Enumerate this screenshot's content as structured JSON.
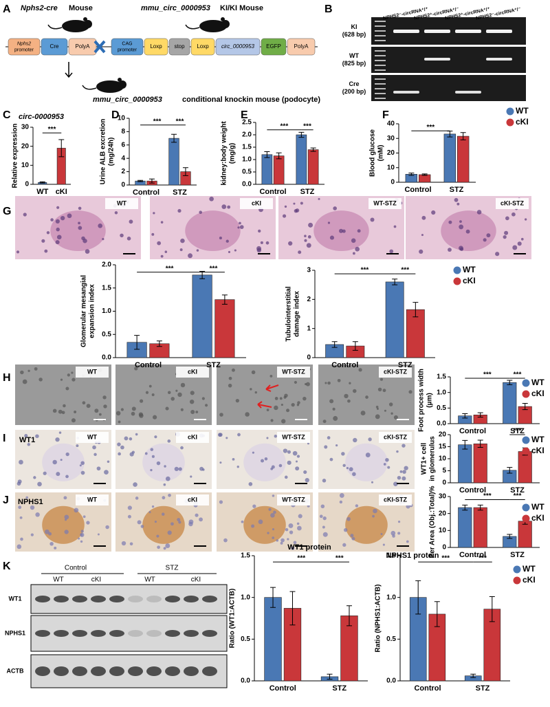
{
  "panel_labels": [
    "A",
    "B",
    "C",
    "D",
    "E",
    "F",
    "G",
    "H",
    "I",
    "J",
    "K"
  ],
  "panel_a": {
    "cre_mouse": "Nphs2-cre",
    "cre_mouse_suffix": "Mouse",
    "ki_mouse": "mmu_circ_0000953",
    "ki_mouse_suffix": "KI/KI Mouse",
    "cre_construct": [
      [
        "Nphs2",
        "promoter"
      ],
      [
        "Cre"
      ],
      [
        "PolyA"
      ]
    ],
    "ki_construct": [
      [
        "CAG",
        "promoter"
      ],
      [
        "Loxp"
      ],
      [
        "stop"
      ],
      [
        "Loxp"
      ],
      [
        "circ_0000953"
      ],
      [
        "EGFP"
      ],
      [
        "PolyA"
      ]
    ],
    "offspring_gene": "mmu_circ_0000953",
    "offspring_label": "conditional knockin mouse (podocyte)"
  },
  "panel_b": {
    "lanes": [
      "NPHS2⁻-circRNA⁺/⁺",
      "NPHS2⁺-circRNA⁺/⁻",
      "NPHS2⁺-circRNA⁺/⁺",
      "NPHS2⁻-circRNA⁺/⁻"
    ],
    "rows": [
      [
        "KI",
        "(628 bp)"
      ],
      [
        "WT",
        "(825 bp)"
      ],
      [
        "Cre",
        "(200 bp)"
      ]
    ]
  },
  "micrographs": {
    "G": [
      "WT",
      "cKI",
      "WT-STZ",
      "cKI-STZ"
    ],
    "H": [
      "WT",
      "cKI",
      "WT-STZ",
      "cKI-STZ"
    ],
    "I": [
      "WT",
      "cKI",
      "WT-STZ",
      "cKI-STZ"
    ],
    "J": [
      "WT",
      "cKI",
      "WT-STZ",
      "cKI-STZ"
    ]
  },
  "row_labels": {
    "I": "WT1",
    "J": "NPHS1"
  },
  "panel_k": {
    "groups": [
      "Control",
      "STZ"
    ],
    "genotypes": [
      "WT",
      "cKI",
      "WT",
      "cKI"
    ],
    "rows": [
      "WT1",
      "NPHS1",
      "ACTB"
    ]
  },
  "chart_data": [
    {
      "type": "bar",
      "title": "circ-0000953",
      "ylabel": [
        "Relative expression"
      ],
      "categories": [
        "WT",
        "cKI"
      ],
      "values": [
        1,
        19
      ],
      "errors": [
        0.3,
        4.5
      ],
      "colors": [
        "#4a78b4",
        "#c9373a"
      ],
      "ylim": [
        0,
        30
      ],
      "yticks": [
        0,
        10,
        20,
        30
      ],
      "annotations": [
        "***"
      ]
    },
    {
      "type": "bar",
      "ylabel": [
        "Urine ALB excretion",
        "(mg/24h)"
      ],
      "categories": [
        "Control",
        "STZ"
      ],
      "series": [
        {
          "name": "WT",
          "color": "#4a78b4",
          "values": [
            0.6,
            7.0
          ],
          "errors": [
            0.1,
            0.6
          ]
        },
        {
          "name": "cKI",
          "color": "#c9373a",
          "values": [
            0.6,
            2.0
          ],
          "errors": [
            0.3,
            0.6
          ]
        }
      ],
      "ylim": [
        0,
        10
      ],
      "yticks": [
        0,
        2,
        4,
        6,
        8,
        10
      ],
      "annotations": [
        "***",
        "***"
      ]
    },
    {
      "type": "bar",
      "ylabel": [
        "kidney:body weight",
        "(mg/g)"
      ],
      "categories": [
        "Control",
        "STZ"
      ],
      "series": [
        {
          "name": "WT",
          "color": "#4a78b4",
          "values": [
            1.2,
            2.0
          ],
          "errors": [
            0.12,
            0.1
          ]
        },
        {
          "name": "cKI",
          "color": "#c9373a",
          "values": [
            1.15,
            1.4
          ],
          "errors": [
            0.12,
            0.07
          ]
        }
      ],
      "ylim": [
        0,
        2.5
      ],
      "yticks": [
        {
          "value": 0,
          "label": "0.0"
        },
        0.5,
        {
          "value": 1,
          "label": "1.0"
        },
        1.5,
        {
          "value": 2,
          "label": "2.0"
        },
        2.5
      ],
      "annotations": [
        "***",
        "***"
      ]
    },
    {
      "type": "bar",
      "ylabel": [
        "Blood glucose",
        "(mM)"
      ],
      "categories": [
        "Control",
        "STZ"
      ],
      "series": [
        {
          "name": "WT",
          "color": "#4a78b4",
          "values": [
            5.5,
            33
          ],
          "errors": [
            0.8,
            2
          ]
        },
        {
          "name": "cKI",
          "color": "#c9373a",
          "values": [
            5.2,
            31.5
          ],
          "errors": [
            0.5,
            2.5
          ]
        }
      ],
      "ylim": [
        0,
        40
      ],
      "yticks": [
        0,
        10,
        20,
        30,
        40
      ],
      "annotations": [
        "***"
      ],
      "legend": true
    },
    {
      "type": "bar",
      "ylabel": [
        "Glomerular mesangial",
        "expansion index"
      ],
      "categories": [
        "Control",
        "STZ"
      ],
      "series": [
        {
          "name": "WT",
          "color": "#4a78b4",
          "values": [
            0.33,
            1.78
          ],
          "errors": [
            0.15,
            0.08
          ]
        },
        {
          "name": "cKI",
          "color": "#c9373a",
          "values": [
            0.3,
            1.25
          ],
          "errors": [
            0.06,
            0.1
          ]
        }
      ],
      "ylim": [
        0,
        2
      ],
      "yticks": [
        {
          "value": 0,
          "label": "0.0"
        },
        0.5,
        {
          "value": 1,
          "label": "1.0"
        },
        1.5,
        {
          "value": 2,
          "label": "2.0"
        }
      ],
      "annotations": [
        "***",
        "***"
      ]
    },
    {
      "type": "bar",
      "ylabel": [
        "Tubulointerstitial",
        "damage index"
      ],
      "categories": [
        "Control",
        "STZ"
      ],
      "series": [
        {
          "name": "WT",
          "color": "#4a78b4",
          "values": [
            0.45,
            2.6
          ],
          "errors": [
            0.1,
            0.1
          ]
        },
        {
          "name": "cKI",
          "color": "#c9373a",
          "values": [
            0.4,
            1.65
          ],
          "errors": [
            0.15,
            0.25
          ]
        }
      ],
      "ylim": [
        0,
        3
      ],
      "yticks": [
        0,
        1,
        2,
        3
      ],
      "annotations": [
        "***",
        "***"
      ],
      "legend": true
    },
    {
      "type": "bar",
      "ylabel": [
        "Foot process width",
        "(μm)"
      ],
      "categories": [
        "Control",
        "STZ"
      ],
      "series": [
        {
          "name": "WT",
          "color": "#4a78b4",
          "values": [
            0.25,
            1.32
          ],
          "errors": [
            0.07,
            0.07
          ]
        },
        {
          "name": "cKI",
          "color": "#c9373a",
          "values": [
            0.28,
            0.55
          ],
          "errors": [
            0.07,
            0.1
          ]
        }
      ],
      "ylim": [
        0,
        1.5
      ],
      "yticks": [
        {
          "value": 0,
          "label": "0.0"
        },
        0.5,
        {
          "value": 1,
          "label": "1.0"
        },
        1.5
      ],
      "annotations": [
        "***",
        "***"
      ],
      "legend": true
    },
    {
      "type": "bar",
      "ylabel": [
        "WT1+ cell",
        "in glomerulus"
      ],
      "categories": [
        "Control",
        "STZ"
      ],
      "series": [
        {
          "name": "WT",
          "color": "#4a78b4",
          "values": [
            15.8,
            5.2
          ],
          "errors": [
            1.8,
            1.2
          ]
        },
        {
          "name": "cKI",
          "color": "#c9373a",
          "values": [
            16.2,
            13
          ],
          "errors": [
            1.5,
            1.5
          ]
        }
      ],
      "ylim": [
        0,
        20
      ],
      "yticks": [
        0,
        5,
        10,
        15,
        20
      ],
      "annotations": [
        "***"
      ],
      "legend": true
    },
    {
      "type": "bar",
      "ylabel": [
        "Per Area (Obj.:Total)%"
      ],
      "categories": [
        "Control",
        "STZ"
      ],
      "series": [
        {
          "name": "WT",
          "color": "#4a78b4",
          "values": [
            23.5,
            6.5
          ],
          "errors": [
            1.5,
            1.2
          ]
        },
        {
          "name": "cKI",
          "color": "#c9373a",
          "values": [
            23.5,
            15.5
          ],
          "errors": [
            1.5,
            1.8
          ]
        }
      ],
      "ylim": [
        0,
        30
      ],
      "yticks": [
        0,
        10,
        20,
        30
      ],
      "annotations": [
        "***",
        "***"
      ],
      "legend": true
    },
    {
      "type": "bar",
      "title": "WT1 protein",
      "ylabel": [
        "Ratio (WT1:ACTB)"
      ],
      "categories": [
        "Control",
        "STZ"
      ],
      "series": [
        {
          "name": "WT",
          "color": "#4a78b4",
          "values": [
            1.0,
            0.05
          ],
          "errors": [
            0.12,
            0.03
          ]
        },
        {
          "name": "cKI",
          "color": "#c9373a",
          "values": [
            0.87,
            0.78
          ],
          "errors": [
            0.2,
            0.12
          ]
        }
      ],
      "ylim": [
        0,
        1.5
      ],
      "yticks": [
        {
          "value": 0,
          "label": "0.0"
        },
        0.5,
        {
          "value": 1,
          "label": "1.0"
        },
        1.5
      ],
      "annotations": [
        "***",
        "***"
      ]
    },
    {
      "type": "bar",
      "title": "NPHS1 protein",
      "ylabel": [
        "Ratio (NPHS1:ACTB)"
      ],
      "categories": [
        "Control",
        "STZ"
      ],
      "series": [
        {
          "name": "WT",
          "color": "#4a78b4",
          "values": [
            1.0,
            0.06
          ],
          "errors": [
            0.2,
            0.02
          ]
        },
        {
          "name": "cKI",
          "color": "#c9373a",
          "values": [
            0.8,
            0.86
          ],
          "errors": [
            0.15,
            0.15
          ]
        }
      ],
      "ylim": [
        0,
        1.5
      ],
      "yticks": [
        {
          "value": 0,
          "label": "0.0"
        },
        0.5,
        {
          "value": 1,
          "label": "1.0"
        },
        1.5
      ],
      "annotations": [
        "***",
        "***"
      ],
      "legend": true
    }
  ]
}
